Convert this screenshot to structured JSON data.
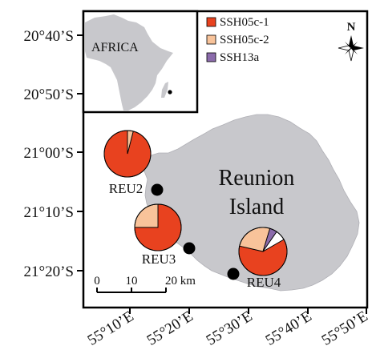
{
  "map": {
    "lat_labels": [
      "20°40’S",
      "20°50’S",
      "21°00’S",
      "21°10’S",
      "21°20’S"
    ],
    "lon_labels": [
      "55°10’E",
      "55°20’E",
      "55°30’E",
      "55°40’E",
      "55°50’E"
    ],
    "island_label_line1": "Reunion",
    "island_label_line2": "Island",
    "inset_label": "AFRICA",
    "north_label": "N",
    "scale": {
      "labels": [
        "0",
        "10",
        "20 km"
      ]
    },
    "colors": {
      "SSH05c-1": "#e8421f",
      "SSH05c-2": "#f8c39a",
      "SSH13a": "#8b6bab",
      "land": "#c8c8cc",
      "frame": "#000000"
    }
  },
  "legend": [
    {
      "name": "SSH05c-1",
      "color": "#e8421f"
    },
    {
      "name": "SSH05c-2",
      "color": "#f8c39a"
    },
    {
      "name": "SSH13a",
      "color": "#8b6bab"
    }
  ],
  "sites": [
    {
      "name": "REU2",
      "haplotypes": [
        {
          "name": "SSH05c-1",
          "fraction": 0.96
        },
        {
          "name": "SSH05c-2",
          "fraction": 0.04
        }
      ]
    },
    {
      "name": "REU3",
      "haplotypes": [
        {
          "name": "SSH05c-1",
          "fraction": 0.75
        },
        {
          "name": "SSH05c-2",
          "fraction": 0.25
        }
      ]
    },
    {
      "name": "REU4",
      "haplotypes": [
        {
          "name": "SSH05c-1",
          "fraction": 0.62
        },
        {
          "name": "SSH05c-2",
          "fraction": 0.26
        },
        {
          "name": "SSH13a",
          "fraction": 0.05
        },
        {
          "name": "other",
          "fraction": 0.07
        }
      ]
    }
  ]
}
